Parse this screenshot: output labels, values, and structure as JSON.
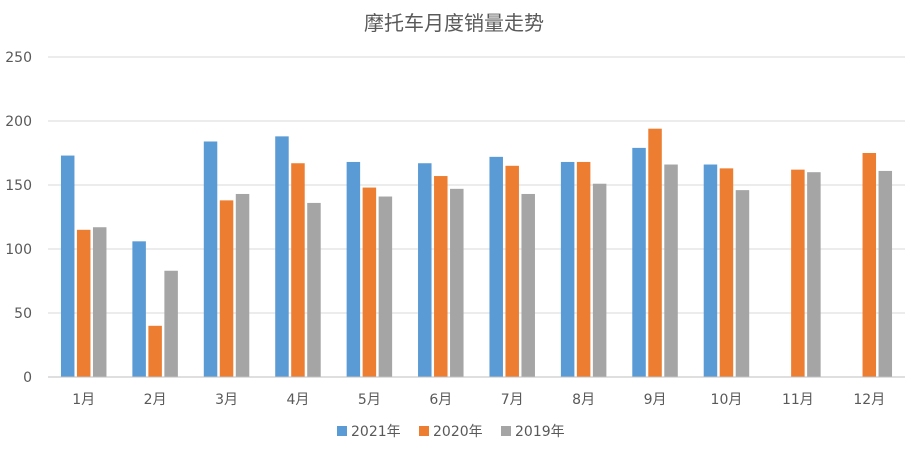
{
  "chart_data": {
    "type": "bar",
    "title": "摩托车月度销量走势",
    "xlabel": "",
    "ylabel": "",
    "categories": [
      "1月",
      "2月",
      "3月",
      "4月",
      "5月",
      "6月",
      "7月",
      "8月",
      "9月",
      "10月",
      "11月",
      "12月"
    ],
    "series": [
      {
        "name": "2021年",
        "color": "#5B9BD5",
        "values": [
          173,
          106,
          184,
          188,
          168,
          167,
          172,
          168,
          179,
          166,
          null,
          null
        ]
      },
      {
        "name": "2020年",
        "color": "#ED7D31",
        "values": [
          115,
          40,
          138,
          167,
          148,
          157,
          165,
          168,
          194,
          163,
          162,
          175
        ]
      },
      {
        "name": "2019年",
        "color": "#A5A5A5",
        "values": [
          117,
          83,
          143,
          136,
          141,
          147,
          143,
          151,
          166,
          146,
          160,
          161
        ]
      }
    ],
    "ylim": [
      0,
      250
    ],
    "yticks": [
      0,
      50,
      100,
      150,
      200,
      250
    ],
    "grid": true,
    "legend_position": "bottom"
  }
}
